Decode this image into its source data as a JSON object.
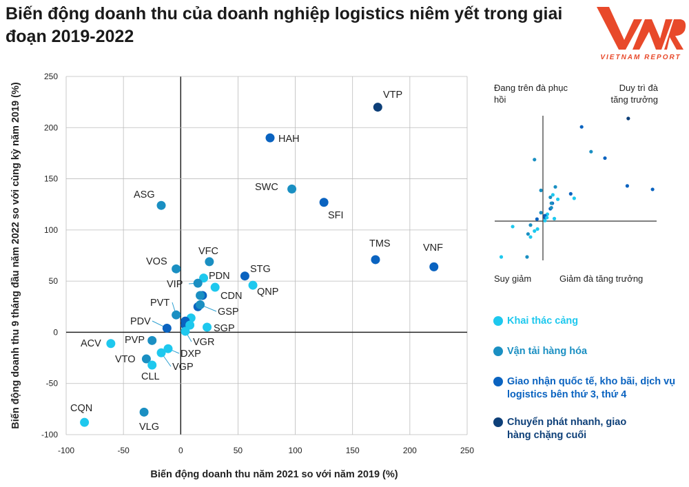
{
  "title": "Biến động doanh thu của doanh nghiệp logistics niêm yết trong giai đoạn 2019-2022",
  "logo": {
    "text": "VIETNAM REPORT",
    "mark": "VNR",
    "color": "#e8492a"
  },
  "quadrants": {
    "top_left": "Đang trên đà phục hồi",
    "top_right": "Duy trì đà tăng trưởng",
    "bottom_left": "Suy giảm",
    "bottom_right": "Giảm đà tăng trưởng"
  },
  "chart_data": {
    "type": "scatter",
    "title": "",
    "xlabel": "Biến động doanh thu năm 2021 so với năm 2019 (%)",
    "ylabel": "Biến động doanh thu 9 tháng đầu năm 2022 so với cùng kỳ năm 2019 (%)",
    "xlim": [
      -100,
      250
    ],
    "ylim": [
      -100,
      250
    ],
    "xticks": [
      "-100",
      "-50",
      "0",
      "50",
      "100",
      "150",
      "200",
      "250"
    ],
    "yticks": [
      "-100",
      "-50",
      "0",
      "50",
      "100",
      "150",
      "200",
      "250"
    ],
    "grid": true,
    "legend_placement": "right",
    "categories": [
      {
        "name": "Khai thác cảng",
        "color": "#1ec8ee"
      },
      {
        "name": "Vận tải hàng hóa",
        "color": "#1a8fc2"
      },
      {
        "name": "Giao nhận quốc tế, kho bãi, dịch vụ logistics bên thứ 3, thứ 4",
        "color": "#0a63c0"
      },
      {
        "name": "Chuyển phát nhanh, giao hàng chặng cuối",
        "color": "#0d3f78"
      }
    ],
    "points": [
      {
        "label": "VTP",
        "x": 172,
        "y": 220,
        "cat": 3
      },
      {
        "label": "HAH",
        "x": 78,
        "y": 190,
        "cat": 2
      },
      {
        "label": "SWC",
        "x": 97,
        "y": 140,
        "cat": 1
      },
      {
        "label": "SFI",
        "x": 125,
        "y": 127,
        "cat": 2
      },
      {
        "label": "ASG",
        "x": -17,
        "y": 124,
        "cat": 1
      },
      {
        "label": "TMS",
        "x": 170,
        "y": 71,
        "cat": 2
      },
      {
        "label": "VNF",
        "x": 221,
        "y": 64,
        "cat": 2
      },
      {
        "label": "VFC",
        "x": 25,
        "y": 69,
        "cat": 1
      },
      {
        "label": "VOS",
        "x": -4,
        "y": 62,
        "cat": 1
      },
      {
        "label": "STG",
        "x": 56,
        "y": 55,
        "cat": 2
      },
      {
        "label": "PDN",
        "x": 20,
        "y": 53,
        "cat": 0
      },
      {
        "label": "QNP",
        "x": 63,
        "y": 46,
        "cat": 0
      },
      {
        "label": "VIP",
        "x": 15,
        "y": 48,
        "cat": 1
      },
      {
        "label": "CDN",
        "x": 30,
        "y": 44,
        "cat": 0
      },
      {
        "label": "",
        "x": 19,
        "y": 36,
        "cat": 2
      },
      {
        "label": "",
        "x": 17,
        "y": 36,
        "cat": 1
      },
      {
        "label": "",
        "x": 15,
        "y": 25,
        "cat": 2
      },
      {
        "label": "GSP",
        "x": 17,
        "y": 27,
        "cat": 1
      },
      {
        "label": "PVT",
        "x": -4,
        "y": 17,
        "cat": 1
      },
      {
        "label": "",
        "x": 9,
        "y": 14,
        "cat": 0
      },
      {
        "label": "",
        "x": 4,
        "y": 11,
        "cat": 2
      },
      {
        "label": "",
        "x": 4,
        "y": 7,
        "cat": 2
      },
      {
        "label": "",
        "x": 8,
        "y": 7,
        "cat": 0
      },
      {
        "label": "PDV",
        "x": -12,
        "y": 4,
        "cat": 2
      },
      {
        "label": "SGP",
        "x": 23,
        "y": 5,
        "cat": 0
      },
      {
        "label": "VGR",
        "x": 4,
        "y": 1,
        "cat": 0
      },
      {
        "label": "PVP",
        "x": -25,
        "y": -8,
        "cat": 1
      },
      {
        "label": "DXP",
        "x": -11,
        "y": -16,
        "cat": 0
      },
      {
        "label": "VGP",
        "x": -17,
        "y": -20,
        "cat": 0
      },
      {
        "label": "VTO",
        "x": -30,
        "y": -26,
        "cat": 1
      },
      {
        "label": "CLL",
        "x": -25,
        "y": -32,
        "cat": 0
      },
      {
        "label": "ACV",
        "x": -61,
        "y": -11,
        "cat": 0
      },
      {
        "label": "VLG",
        "x": -32,
        "y": -78,
        "cat": 1
      },
      {
        "label": "CQN",
        "x": -84,
        "y": -88,
        "cat": 0
      }
    ]
  }
}
